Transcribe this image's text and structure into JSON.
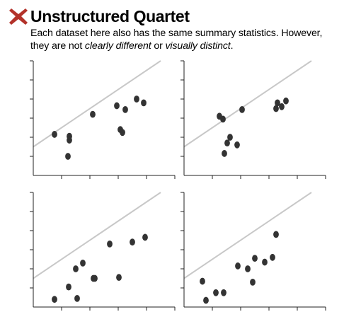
{
  "header": {
    "title": "Unstructured Quartet",
    "subtitle_line1": "Each dataset here also has the same summary statistics. However,",
    "subtitle_line2_prefix": "they are not ",
    "subtitle_em1": "clearly different",
    "subtitle_mid": " or ",
    "subtitle_em2": "visually distinct",
    "subtitle_suffix": ".",
    "mark_icon": "x-cross-icon",
    "mark_color": "#b3322a"
  },
  "colors": {
    "point": "#333333",
    "trend": "#c8c8c8",
    "axis": "#222222"
  },
  "chart_data": [
    {
      "type": "scatter",
      "title": "",
      "xlabel": "",
      "ylabel": "",
      "xlim": [
        0,
        20
      ],
      "ylim": [
        0,
        12
      ],
      "trend_line": {
        "slope": 0.5,
        "intercept": 3
      },
      "x": [
        3,
        5.1,
        5.1,
        4.9,
        8.4,
        11.8,
        12.3,
        12.6,
        13,
        14.6,
        15.6
      ],
      "y": [
        4.3,
        4.1,
        3.7,
        2,
        6.4,
        7.3,
        4.8,
        4.5,
        6.9,
        8,
        7.6
      ]
    },
    {
      "type": "scatter",
      "title": "",
      "xlabel": "",
      "ylabel": "",
      "xlim": [
        0,
        20
      ],
      "ylim": [
        0,
        12
      ],
      "trend_line": {
        "slope": 0.5,
        "intercept": 3
      },
      "x": [
        5,
        5.5,
        5.7,
        6.1,
        6.5,
        7.5,
        8.2,
        13,
        13.2,
        13.8,
        14.4
      ],
      "y": [
        6.2,
        5.9,
        2.3,
        3.4,
        4,
        3.2,
        6.9,
        7,
        7.6,
        7.2,
        7.8
      ]
    },
    {
      "type": "scatter",
      "title": "",
      "xlabel": "",
      "ylabel": "",
      "xlim": [
        0,
        20
      ],
      "ylim": [
        0,
        12
      ],
      "trend_line": {
        "slope": 0.5,
        "intercept": 3
      },
      "x": [
        3,
        5,
        6,
        6.2,
        7,
        8.5,
        8.7,
        10.8,
        12.1,
        14,
        15.8
      ],
      "y": [
        0.8,
        2.1,
        4,
        0.9,
        4.6,
        3,
        3,
        6.6,
        3.1,
        6.8,
        7.3
      ]
    },
    {
      "type": "scatter",
      "title": "",
      "xlabel": "",
      "ylabel": "",
      "xlim": [
        0,
        20
      ],
      "ylim": [
        0,
        12
      ],
      "trend_line": {
        "slope": 0.5,
        "intercept": 3
      },
      "x": [
        2.6,
        3.1,
        4.5,
        5.6,
        7.6,
        9,
        9.7,
        10,
        11.4,
        12.5,
        13
      ],
      "y": [
        2.7,
        0.7,
        1.5,
        1.5,
        4.3,
        4,
        2.6,
        5.1,
        4.7,
        5.2,
        7.6
      ]
    }
  ]
}
